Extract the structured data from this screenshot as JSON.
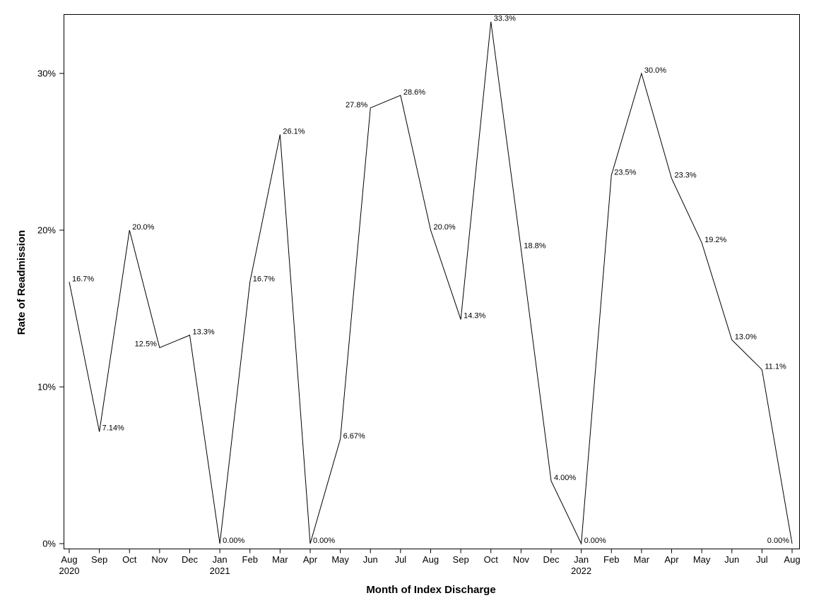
{
  "chart_data": {
    "type": "line",
    "xlabel": "Month of Index Discharge",
    "ylabel": "Rate of Readmission",
    "ylim": [
      0,
      0.3
    ],
    "grid": false,
    "legend": "none",
    "y_ticks": [
      "0%",
      "10%",
      "20%",
      "30%"
    ],
    "y_tick_values": [
      0,
      0.1,
      0.2,
      0.3
    ],
    "categories": [
      "Aug",
      "Sep",
      "Oct",
      "Nov",
      "Dec",
      "Jan",
      "Feb",
      "Mar",
      "Apr",
      "May",
      "Jun",
      "Jul",
      "Aug",
      "Sep",
      "Oct",
      "Nov",
      "Dec",
      "Jan",
      "Feb",
      "Mar",
      "Apr",
      "May",
      "Jun",
      "Jul",
      "Aug"
    ],
    "year_labels": [
      "2020",
      "",
      "",
      "",
      "",
      "2021",
      "",
      "",
      "",
      "",
      "",
      "",
      "",
      "",
      "",
      "",
      "",
      "2022",
      "",
      "",
      "",
      "",
      "",
      "",
      ""
    ],
    "values": [
      0.167,
      0.0714,
      0.2,
      0.125,
      0.133,
      0,
      0.167,
      0.261,
      0,
      0.0667,
      0.278,
      0.286,
      0.2,
      0.143,
      0.333,
      0.188,
      0.04,
      0,
      0.235,
      0.3,
      0.233,
      0.192,
      0.13,
      0.111,
      0
    ],
    "data_labels": [
      "16.7%",
      "7.14%",
      "20.0%",
      "12.5%",
      "13.3%",
      "0.00%",
      "16.7%",
      "26.1%",
      "0.00%",
      "6.67%",
      "27.8%",
      "28.6%",
      "20.0%",
      "14.3%",
      "33.3%",
      "18.8%",
      "4.00%",
      "0.00%",
      "23.5%",
      "30.0%",
      "23.3%",
      "19.2%",
      "13.0%",
      "11.1%",
      "0.00%"
    ]
  }
}
